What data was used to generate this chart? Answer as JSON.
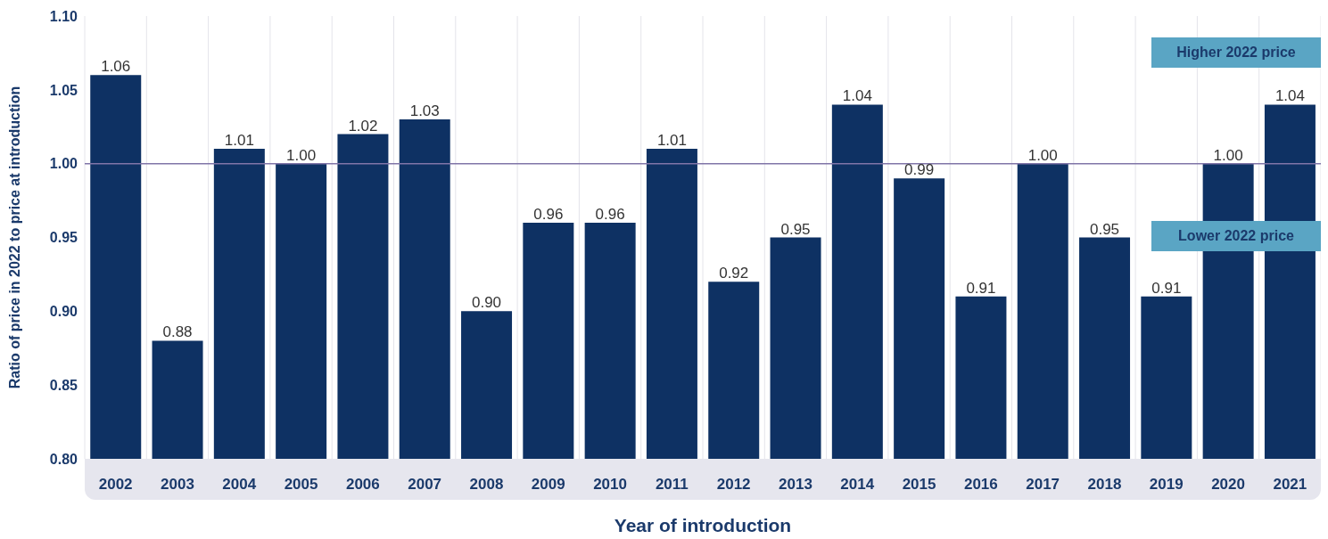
{
  "chart_data": {
    "type": "bar",
    "xlabel": "Year of introduction",
    "ylabel": "Ratio of price in 2022 to price at introduction",
    "categories": [
      "2002",
      "2003",
      "2004",
      "2005",
      "2006",
      "2007",
      "2008",
      "2009",
      "2010",
      "2011",
      "2012",
      "2013",
      "2014",
      "2015",
      "2016",
      "2017",
      "2018",
      "2019",
      "2020",
      "2021"
    ],
    "values": [
      1.06,
      0.88,
      1.01,
      1.0,
      1.02,
      1.03,
      0.9,
      0.96,
      0.96,
      1.01,
      0.92,
      0.95,
      1.04,
      0.99,
      0.91,
      1.0,
      0.95,
      0.91,
      1.0,
      1.04
    ],
    "value_labels": [
      "1.06",
      "0.88",
      "1.01",
      "1.00",
      "1.02",
      "1.03",
      "0.90",
      "0.96",
      "0.96",
      "1.01",
      "0.92",
      "0.95",
      "1.04",
      "0.99",
      "0.91",
      "1.00",
      "0.95",
      "0.91",
      "1.00",
      "1.04"
    ],
    "color": "#0e3163",
    "ylim": [
      0.8,
      1.1
    ],
    "yticks": [
      {
        "value": 0.8,
        "label": "0.80"
      },
      {
        "value": 0.85,
        "label": "0.85"
      },
      {
        "value": 0.9,
        "label": "0.90"
      },
      {
        "value": 0.95,
        "label": "0.95"
      },
      {
        "value": 1.0,
        "label": "1.00"
      },
      {
        "value": 1.05,
        "label": "1.05"
      },
      {
        "value": 1.1,
        "label": "1.10"
      }
    ],
    "grid": "x",
    "ref_lines": [
      {
        "axis": "y",
        "value": 1.0,
        "color": "#8075a8"
      }
    ],
    "annotations": [
      "Higher 2022 price",
      "Lower 2022 price"
    ]
  }
}
